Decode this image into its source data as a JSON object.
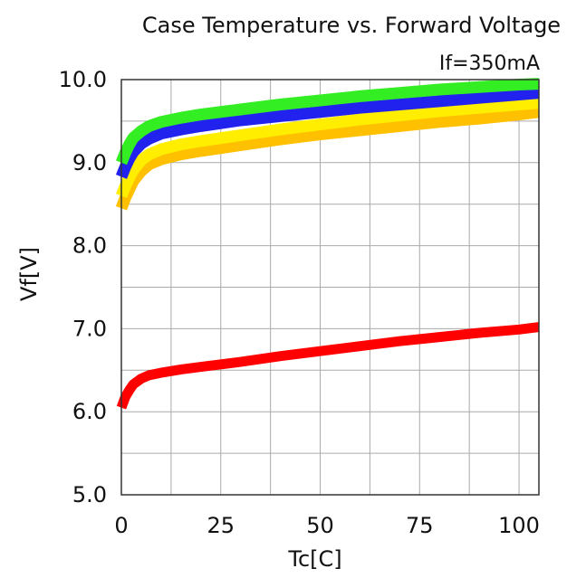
{
  "chart_data": {
    "type": "line",
    "title": "Case Temperature vs. Forward Voltage",
    "subtitle": "If=350mA",
    "xlabel": "Tc[C]",
    "ylabel": "Vf[V]",
    "xlim": [
      0,
      105
    ],
    "ylim": [
      5.0,
      10.0
    ],
    "x_ticks": [
      0,
      25,
      50,
      75,
      100
    ],
    "x_tick_labels": [
      "0",
      "25",
      "50",
      "75",
      "100"
    ],
    "x_grid": [
      0,
      12.5,
      25,
      37.5,
      50,
      62.5,
      75,
      87.5,
      100,
      105
    ],
    "y_ticks": [
      5.0,
      6.0,
      7.0,
      8.0,
      9.0,
      10.0
    ],
    "y_tick_labels": [
      "5.0",
      "6.0",
      "7.0",
      "8.0",
      "9.0",
      "10.0"
    ],
    "y_grid": [
      5.0,
      5.5,
      6.0,
      6.5,
      7.0,
      7.5,
      8.0,
      8.5,
      9.0,
      9.5,
      10.0
    ],
    "grid": true,
    "legend": "none",
    "series": [
      {
        "color": "#ffc000",
        "width": 13,
        "x": [
          0,
          1,
          2,
          3,
          5,
          7,
          10,
          15,
          20,
          30,
          40,
          50,
          60,
          70,
          80,
          90,
          100,
          105
        ],
        "y": [
          8.45,
          8.58,
          8.68,
          8.78,
          8.9,
          8.98,
          9.04,
          9.1,
          9.14,
          9.21,
          9.28,
          9.34,
          9.39,
          9.44,
          9.49,
          9.53,
          9.58,
          9.61
        ]
      },
      {
        "color": "#ffee00",
        "width": 13,
        "x": [
          0,
          1,
          2,
          3,
          5,
          7,
          10,
          15,
          20,
          30,
          40,
          50,
          60,
          70,
          80,
          90,
          100,
          105
        ],
        "y": [
          8.6,
          8.72,
          8.82,
          8.91,
          9.03,
          9.1,
          9.16,
          9.22,
          9.26,
          9.33,
          9.4,
          9.46,
          9.52,
          9.57,
          9.62,
          9.66,
          9.7,
          9.72
        ]
      },
      {
        "color": "#2222ee",
        "width": 13,
        "x": [
          0,
          1,
          2,
          3,
          5,
          7,
          10,
          15,
          20,
          30,
          40,
          50,
          60,
          70,
          80,
          90,
          100,
          105
        ],
        "y": [
          8.83,
          8.95,
          9.05,
          9.13,
          9.23,
          9.29,
          9.35,
          9.4,
          9.44,
          9.51,
          9.56,
          9.61,
          9.66,
          9.7,
          9.74,
          9.78,
          9.82,
          9.84
        ]
      },
      {
        "color": "#33ee22",
        "width": 13,
        "x": [
          0,
          1,
          2,
          3,
          5,
          7,
          10,
          15,
          20,
          30,
          40,
          50,
          60,
          70,
          80,
          90,
          100,
          105
        ],
        "y": [
          9.0,
          9.12,
          9.22,
          9.3,
          9.38,
          9.44,
          9.49,
          9.54,
          9.58,
          9.64,
          9.7,
          9.75,
          9.8,
          9.84,
          9.88,
          9.91,
          9.94,
          9.95
        ]
      },
      {
        "color": "#ff0000",
        "width": 11,
        "x": [
          0,
          1,
          2,
          3,
          5,
          7,
          10,
          15,
          20,
          30,
          40,
          50,
          60,
          70,
          80,
          90,
          100,
          105
        ],
        "y": [
          6.05,
          6.18,
          6.26,
          6.33,
          6.4,
          6.44,
          6.47,
          6.51,
          6.54,
          6.6,
          6.67,
          6.73,
          6.79,
          6.85,
          6.9,
          6.95,
          6.99,
          7.02
        ]
      }
    ]
  }
}
